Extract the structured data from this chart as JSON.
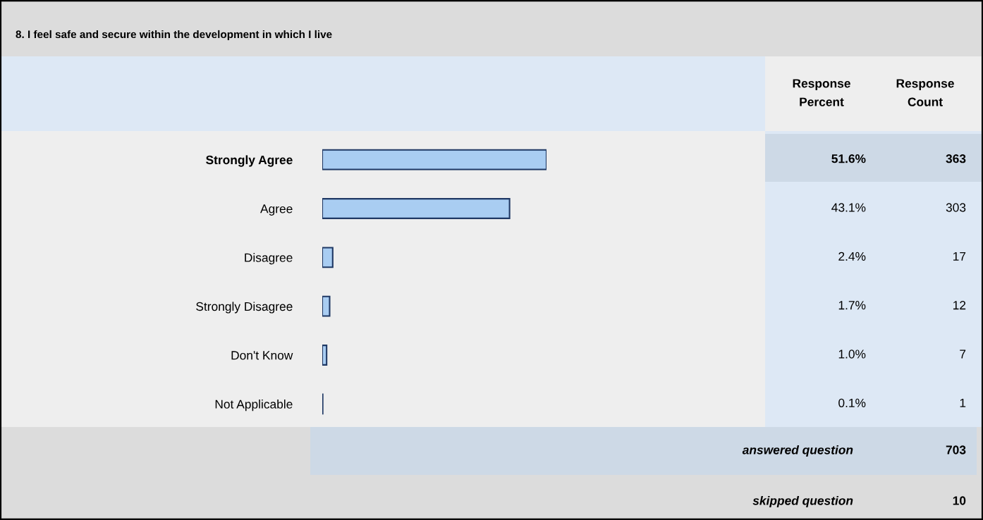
{
  "chart_data": {
    "type": "bar",
    "orientation": "horizontal",
    "title": "8. I feel safe and secure within the development in which I live",
    "categories": [
      "Strongly Agree",
      "Agree",
      "Disagree",
      "Strongly Disagree",
      "Don't Know",
      "Not Applicable"
    ],
    "values": [
      51.6,
      43.1,
      2.4,
      1.7,
      1.0,
      0.1
    ],
    "value_labels": [
      "51.6%",
      "43.1%",
      "2.4%",
      "1.7%",
      "1.0%",
      "0.1%"
    ],
    "color": "#a9cdf2",
    "grid": false,
    "legend": false,
    "annotations": [
      "Response\nPercent",
      "Response\nCount",
      "363",
      "303",
      "17",
      "12",
      "7",
      "1",
      "answered question",
      "703",
      "skipped question",
      "10"
    ]
  }
}
